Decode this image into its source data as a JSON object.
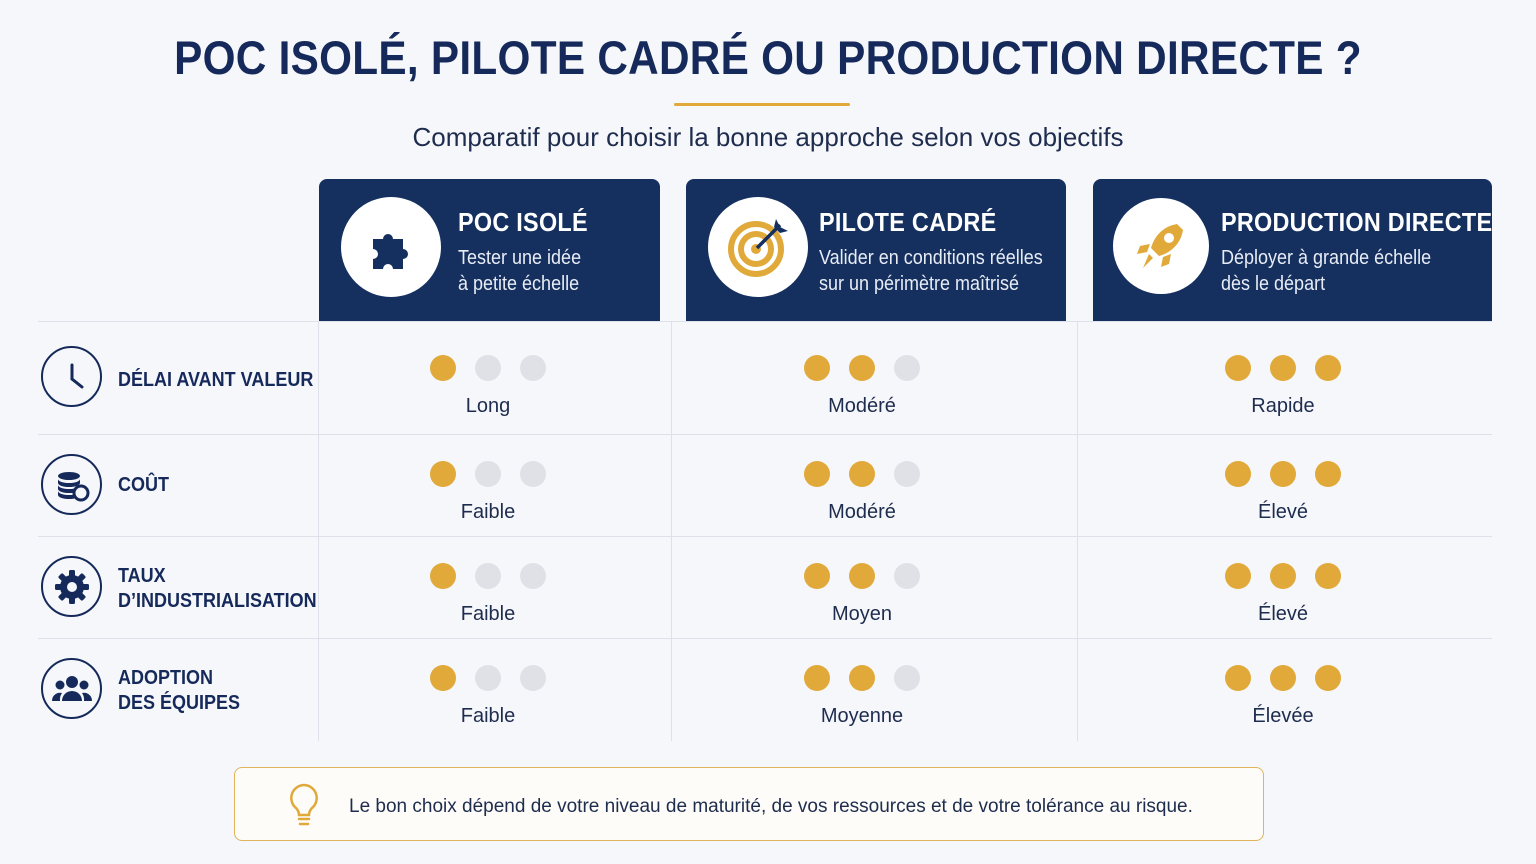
{
  "title": "POC ISOLÉ, PILOTE CADRÉ OU PRODUCTION DIRECTE ?",
  "subtitle": "Comparatif pour choisir la bonne approche selon vos objectifs",
  "colors": {
    "navy": "#15305f",
    "gold": "#e0a93a",
    "inactive_dot": "#dfe1e6"
  },
  "columns": [
    {
      "icon": "puzzle-icon",
      "title": "POC ISOLÉ",
      "desc_line1": "Tester une idée",
      "desc_line2": "à petite échelle"
    },
    {
      "icon": "target-icon",
      "title": "PILOTE CADRÉ",
      "desc_line1": "Valider en conditions réelles",
      "desc_line2": "sur un périmètre maîtrisé"
    },
    {
      "icon": "rocket-icon",
      "title": "PRODUCTION DIRECTE",
      "desc_line1": "Déployer à grande échelle",
      "desc_line2": "dès le départ"
    }
  ],
  "rows": [
    {
      "icon": "clock-icon",
      "label_line1": "DÉLAI AVANT VALEUR",
      "label_line2": "",
      "cells": [
        {
          "level": 1,
          "max": 3,
          "label": "Long"
        },
        {
          "level": 2,
          "max": 3,
          "label": "Modéré"
        },
        {
          "level": 3,
          "max": 3,
          "label": "Rapide"
        }
      ]
    },
    {
      "icon": "coins-icon",
      "label_line1": "COÛT",
      "label_line2": "",
      "cells": [
        {
          "level": 1,
          "max": 3,
          "label": "Faible"
        },
        {
          "level": 2,
          "max": 3,
          "label": "Modéré"
        },
        {
          "level": 3,
          "max": 3,
          "label": "Élevé"
        }
      ]
    },
    {
      "icon": "gear-icon",
      "label_line1": "TAUX",
      "label_line2": "D’INDUSTRIALISATION",
      "cells": [
        {
          "level": 1,
          "max": 3,
          "label": "Faible"
        },
        {
          "level": 2,
          "max": 3,
          "label": "Moyen"
        },
        {
          "level": 3,
          "max": 3,
          "label": "Élevé"
        }
      ]
    },
    {
      "icon": "team-icon",
      "label_line1": "ADOPTION",
      "label_line2": "DES ÉQUIPES",
      "cells": [
        {
          "level": 1,
          "max": 3,
          "label": "Faible"
        },
        {
          "level": 2,
          "max": 3,
          "label": "Moyenne"
        },
        {
          "level": 3,
          "max": 3,
          "label": "Élevée"
        }
      ]
    }
  ],
  "note": {
    "icon": "lightbulb-icon",
    "text": "Le bon choix dépend de votre niveau de maturité, de vos ressources et de votre tolérance au risque."
  }
}
